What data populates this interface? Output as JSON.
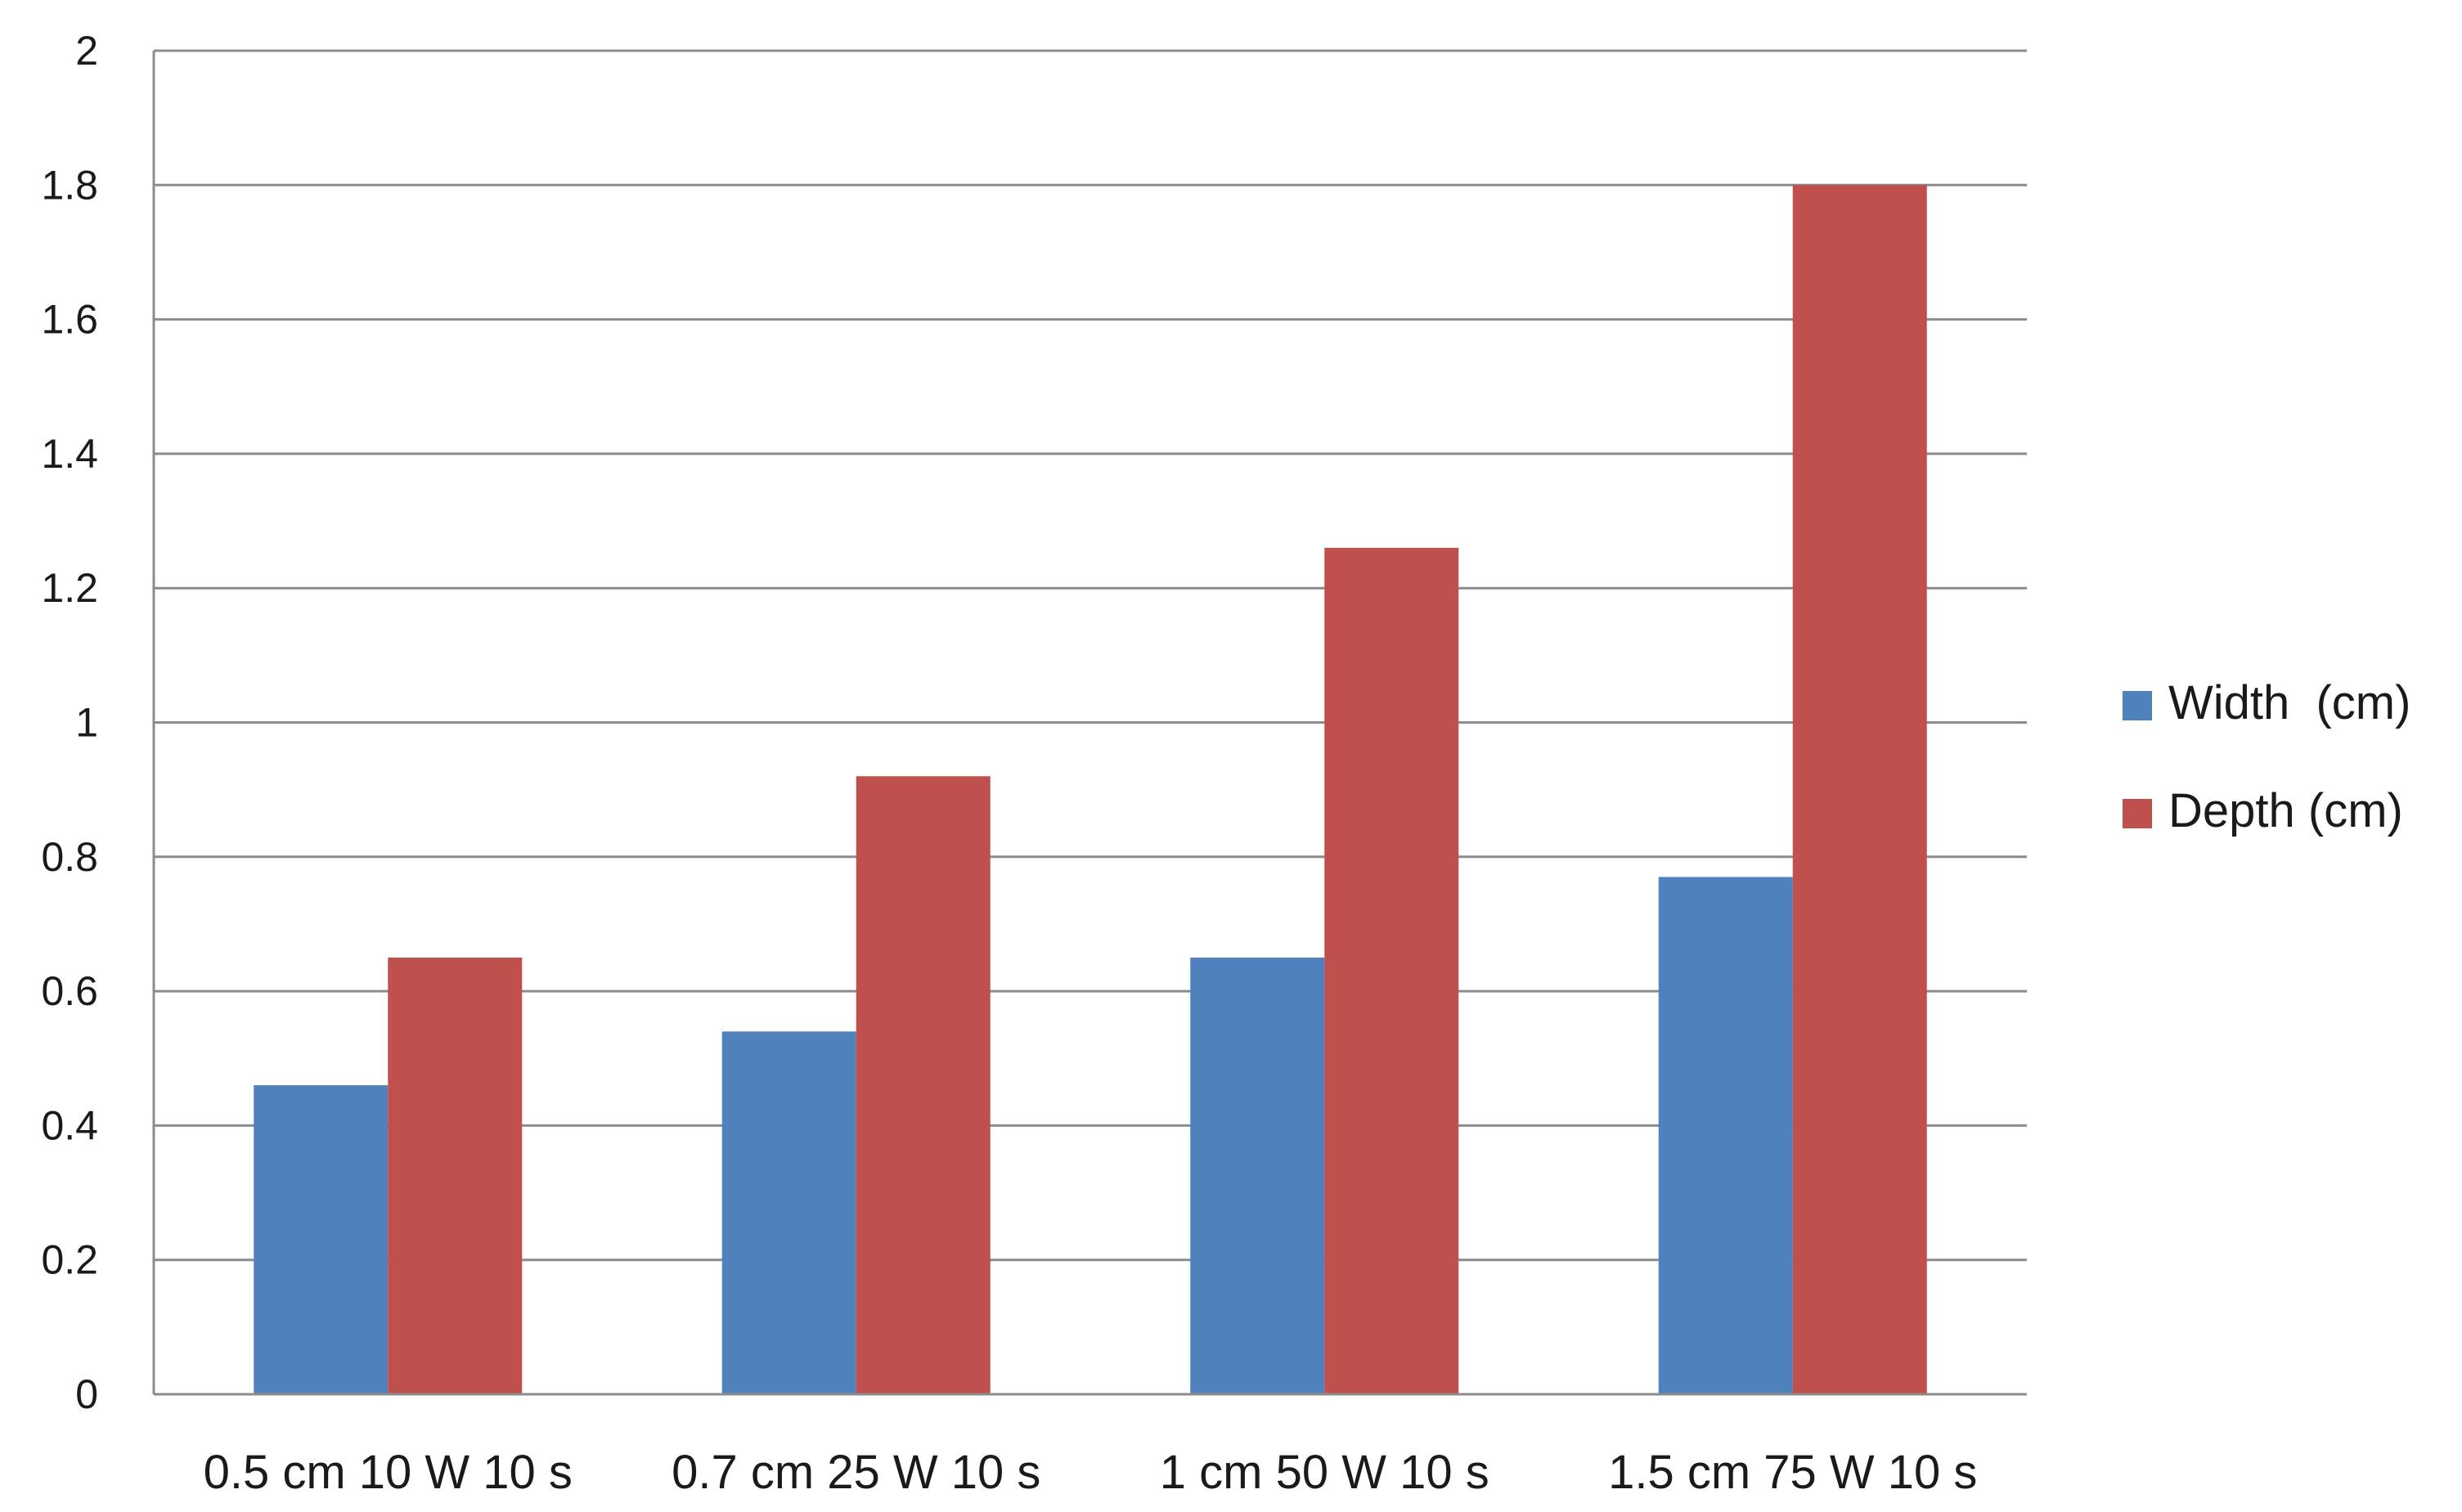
{
  "chart_data": {
    "type": "bar",
    "title": "",
    "xlabel": "",
    "ylabel": "",
    "categories": [
      "0.5 cm 10 W 10 s",
      "0.7 cm 25 W 10 s",
      "1 cm 50 W 10 s",
      "1.5 cm 75 W 10 s"
    ],
    "series": [
      {
        "name": "Width  (cm)",
        "values": [
          0.46,
          0.54,
          0.65,
          0.77
        ],
        "color": "#4f81bd"
      },
      {
        "name": "Depth (cm)",
        "values": [
          0.65,
          0.92,
          1.26,
          1.8
        ],
        "color": "#c0504d"
      }
    ],
    "ylim": [
      0,
      2
    ],
    "yticks": [
      "0",
      "0.2",
      "0.4",
      "0.6",
      "0.8",
      "1",
      "1.2",
      "1.4",
      "1.6",
      "1.8",
      "2"
    ],
    "grid": true,
    "legend_position": "right"
  }
}
